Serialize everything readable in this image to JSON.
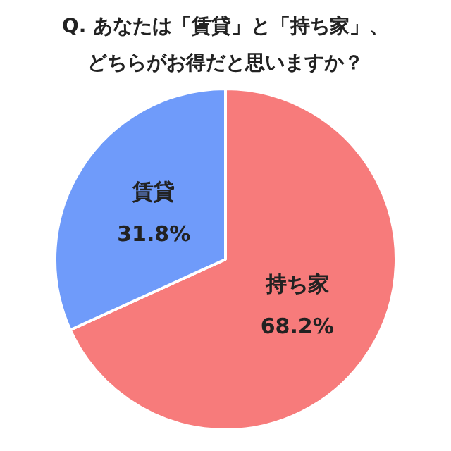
{
  "chart_data": {
    "type": "pie",
    "title": "Q. あなたは「賃貸」と「持ち家」、どちらがお得だと思いますか？",
    "categories": [
      "持ち家",
      "賃貸"
    ],
    "values": [
      68.2,
      31.8
    ],
    "colors": [
      "#f77b7b",
      "#6f9bfa"
    ],
    "value_labels": [
      "68.2%",
      "31.8%"
    ],
    "legend": false
  }
}
